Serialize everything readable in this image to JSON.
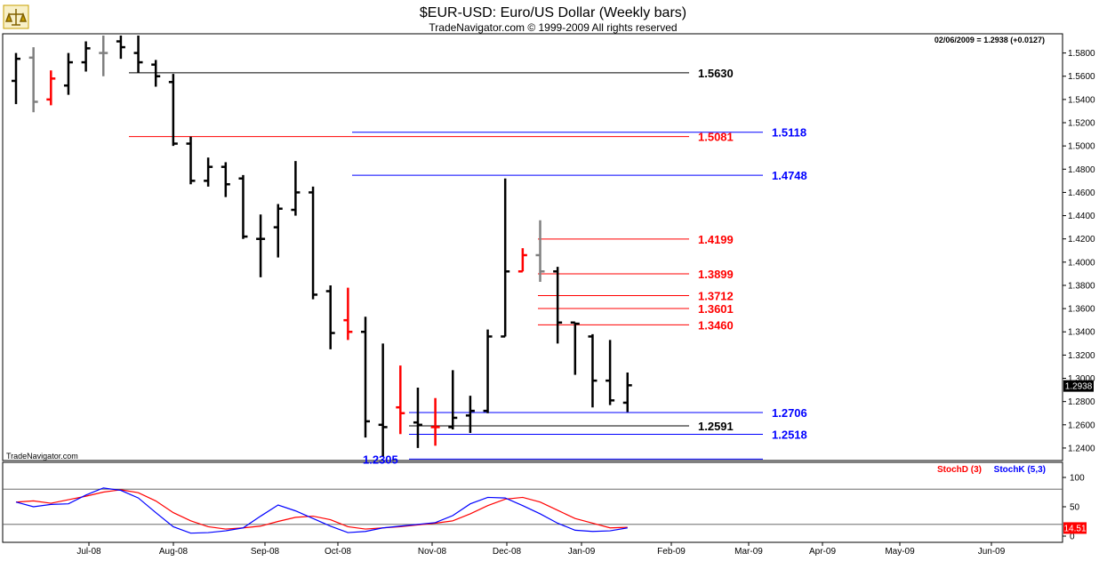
{
  "header": {
    "title": "$EUR-USD:  Euro/US Dollar  (Weekly bars)",
    "subtitle": "TradeNavigator.com © 1999-2009 All rights reserved",
    "readout": "02/06/2009 = 1.2938 (+0.0127)",
    "watermark": "TradeNavigator.com"
  },
  "colors": {
    "up": "#000000",
    "down": "#ff0000",
    "neutral": "#808080",
    "stoch_d": "#ff0000",
    "stoch_k": "#0000ff",
    "level_black": "#000000",
    "level_red": "#ff0000",
    "level_blue": "#0000ff",
    "logo": "#c8a000"
  },
  "chart_data": [
    {
      "type": "ohlc",
      "ylim": [
        1.23,
        1.595
      ],
      "yticks": [
        1.24,
        1.26,
        1.28,
        1.3,
        1.32,
        1.34,
        1.36,
        1.38,
        1.4,
        1.42,
        1.44,
        1.46,
        1.48,
        1.5,
        1.52,
        1.54,
        1.56,
        1.58
      ],
      "ytick_labels": [
        "1.2400",
        "1.2600",
        "1.2800",
        "1.3000",
        "1.3200",
        "1.3400",
        "1.3600",
        "1.3800",
        "1.4000",
        "1.4200",
        "1.4400",
        "1.4600",
        "1.4800",
        "1.5000",
        "1.5200",
        "1.5400",
        "1.5600",
        "1.5800"
      ],
      "last_price": "1.2938",
      "xlabels": [
        "Jul-08",
        "Aug-08",
        "Sep-08",
        "Oct-08",
        "Nov-08",
        "Dec-08",
        "Jan-09",
        "Feb-09",
        "Mar-09",
        "Apr-09",
        "May-09",
        "Jun-09"
      ],
      "bars": [
        {
          "o": 1.556,
          "h": 1.58,
          "l": 1.536,
          "c": 1.575,
          "color": "up"
        },
        {
          "o": 1.576,
          "h": 1.585,
          "l": 1.529,
          "c": 1.538,
          "color": "neutral"
        },
        {
          "o": 1.54,
          "h": 1.565,
          "l": 1.535,
          "c": 1.558,
          "color": "down"
        },
        {
          "o": 1.552,
          "h": 1.58,
          "l": 1.544,
          "c": 1.572,
          "color": "up"
        },
        {
          "o": 1.572,
          "h": 1.59,
          "l": 1.564,
          "c": 1.584,
          "color": "up"
        },
        {
          "o": 1.58,
          "h": 1.595,
          "l": 1.56,
          "c": 1.58,
          "color": "neutral"
        },
        {
          "o": 1.59,
          "h": 1.595,
          "l": 1.575,
          "c": 1.585,
          "color": "up"
        },
        {
          "o": 1.58,
          "h": 1.595,
          "l": 1.563,
          "c": 1.572,
          "color": "up"
        },
        {
          "o": 1.57,
          "h": 1.574,
          "l": 1.551,
          "c": 1.56,
          "color": "up"
        },
        {
          "o": 1.555,
          "h": 1.562,
          "l": 1.5,
          "c": 1.502,
          "color": "up"
        },
        {
          "o": 1.502,
          "h": 1.508,
          "l": 1.467,
          "c": 1.47,
          "color": "up"
        },
        {
          "o": 1.47,
          "h": 1.49,
          "l": 1.465,
          "c": 1.482,
          "color": "up"
        },
        {
          "o": 1.482,
          "h": 1.486,
          "l": 1.456,
          "c": 1.467,
          "color": "up"
        },
        {
          "o": 1.472,
          "h": 1.475,
          "l": 1.42,
          "c": 1.422,
          "color": "up"
        },
        {
          "o": 1.42,
          "h": 1.441,
          "l": 1.387,
          "c": 1.42,
          "color": "up"
        },
        {
          "o": 1.43,
          "h": 1.45,
          "l": 1.404,
          "c": 1.446,
          "color": "up"
        },
        {
          "o": 1.445,
          "h": 1.487,
          "l": 1.44,
          "c": 1.46,
          "color": "up"
        },
        {
          "o": 1.46,
          "h": 1.465,
          "l": 1.368,
          "c": 1.372,
          "color": "up"
        },
        {
          "o": 1.375,
          "h": 1.38,
          "l": 1.325,
          "c": 1.339,
          "color": "up"
        },
        {
          "o": 1.35,
          "h": 1.378,
          "l": 1.333,
          "c": 1.34,
          "color": "down"
        },
        {
          "o": 1.34,
          "h": 1.353,
          "l": 1.249,
          "c": 1.263,
          "color": "up"
        },
        {
          "o": 1.26,
          "h": 1.33,
          "l": 1.233,
          "c": 1.258,
          "color": "up"
        },
        {
          "o": 1.275,
          "h": 1.311,
          "l": 1.252,
          "c": 1.27,
          "color": "down"
        },
        {
          "o": 1.262,
          "h": 1.292,
          "l": 1.24,
          "c": 1.26,
          "color": "up"
        },
        {
          "o": 1.258,
          "h": 1.283,
          "l": 1.242,
          "c": 1.258,
          "color": "down"
        },
        {
          "o": 1.258,
          "h": 1.307,
          "l": 1.256,
          "c": 1.266,
          "color": "up"
        },
        {
          "o": 1.268,
          "h": 1.285,
          "l": 1.253,
          "c": 1.272,
          "color": "up"
        },
        {
          "o": 1.272,
          "h": 1.342,
          "l": 1.27,
          "c": 1.336,
          "color": "up"
        },
        {
          "o": 1.336,
          "h": 1.472,
          "l": 1.336,
          "c": 1.392,
          "color": "up"
        },
        {
          "o": 1.392,
          "h": 1.412,
          "l": 1.392,
          "c": 1.406,
          "color": "down"
        },
        {
          "o": 1.406,
          "h": 1.436,
          "l": 1.383,
          "c": 1.392,
          "color": "neutral"
        },
        {
          "o": 1.392,
          "h": 1.396,
          "l": 1.33,
          "c": 1.348,
          "color": "up"
        },
        {
          "o": 1.348,
          "h": 1.348,
          "l": 1.303,
          "c": 1.347,
          "color": "up"
        },
        {
          "o": 1.336,
          "h": 1.338,
          "l": 1.275,
          "c": 1.298,
          "color": "up"
        },
        {
          "o": 1.298,
          "h": 1.333,
          "l": 1.277,
          "c": 1.281,
          "color": "up"
        },
        {
          "o": 1.279,
          "h": 1.305,
          "l": 1.271,
          "c": 1.294,
          "color": "up"
        }
      ],
      "levels": [
        {
          "label": "1.5630",
          "value": 1.563,
          "color": "level_black"
        },
        {
          "label": "1.5118",
          "value": 1.5118,
          "color": "level_blue"
        },
        {
          "label": "1.5081",
          "value": 1.5081,
          "color": "level_red"
        },
        {
          "label": "1.4748",
          "value": 1.4748,
          "color": "level_blue"
        },
        {
          "label": "1.4199",
          "value": 1.4199,
          "color": "level_red"
        },
        {
          "label": "1.3899",
          "value": 1.3899,
          "color": "level_red"
        },
        {
          "label": "1.3712",
          "value": 1.3712,
          "color": "level_red"
        },
        {
          "label": "1.3601",
          "value": 1.3601,
          "color": "level_red"
        },
        {
          "label": "1.3460",
          "value": 1.346,
          "color": "level_red"
        },
        {
          "label": "1.2706",
          "value": 1.2706,
          "color": "level_blue"
        },
        {
          "label": "1.2591",
          "value": 1.2591,
          "color": "level_black"
        },
        {
          "label": "1.2518",
          "value": 1.2518,
          "color": "level_blue"
        },
        {
          "label": "1.2305",
          "value": 1.2305,
          "color": "level_blue"
        }
      ]
    },
    {
      "type": "line",
      "legend": [
        "StochD (3)",
        "StochK (5,3)"
      ],
      "ylim": [
        0,
        100
      ],
      "yticks": [
        0,
        50,
        100
      ],
      "ytick_labels": [
        "0",
        "50",
        "100"
      ],
      "reference_lines": [
        20,
        80
      ],
      "last_value": "14.51",
      "series": [
        {
          "name": "StochD (3)",
          "values": [
            58,
            60,
            56,
            62,
            68,
            75,
            79,
            74,
            60,
            40,
            26,
            16,
            12,
            14,
            17,
            25,
            32,
            34,
            28,
            16,
            12,
            14,
            16,
            19,
            22,
            26,
            38,
            52,
            63,
            66,
            58,
            44,
            30,
            22,
            14,
            15
          ]
        },
        {
          "name": "StochK (5,3)",
          "values": [
            58,
            50,
            54,
            55,
            70,
            82,
            78,
            65,
            40,
            16,
            5,
            6,
            9,
            14,
            34,
            53,
            43,
            30,
            17,
            6,
            8,
            14,
            17,
            20,
            23,
            35,
            55,
            66,
            65,
            52,
            38,
            22,
            10,
            8,
            9,
            14
          ]
        }
      ]
    }
  ]
}
